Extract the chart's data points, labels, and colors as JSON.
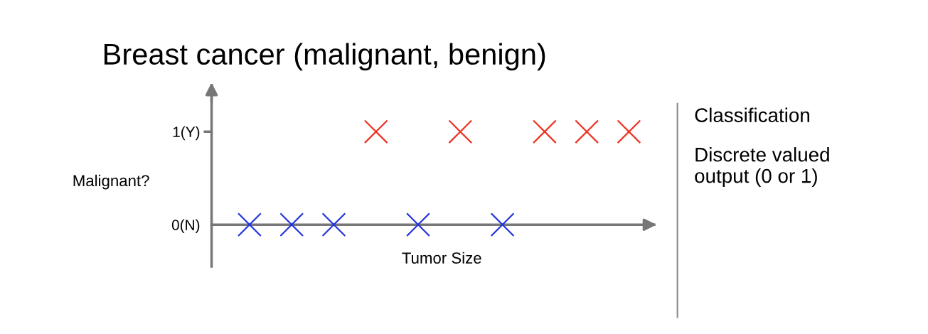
{
  "chart_data": {
    "type": "scatter",
    "title": "Breast cancer (malignant, benign)",
    "xlabel": "Tumor Size",
    "ylabel": "Malignant?",
    "categories": [
      null,
      null,
      null,
      null,
      null,
      null,
      null,
      null,
      null,
      null
    ],
    "series": [
      {
        "color": "#2233dd",
        "values": [
          0,
          0,
          0,
          null,
          0,
          null,
          0,
          null,
          null,
          null
        ]
      },
      {
        "color": "#ee3322",
        "values": [
          null,
          null,
          null,
          1,
          null,
          1,
          null,
          1,
          1,
          1
        ]
      }
    ],
    "ylim": [
      -0.45,
      1.5
    ],
    "yticks": [
      {
        "value": 0,
        "label": "0(N)"
      },
      {
        "value": 1,
        "label": "1(Y)"
      }
    ],
    "tick_labels": "y",
    "marker": "cross",
    "annotations": [
      "Classification",
      "Discrete valued\noutput (0 or 1)"
    ]
  }
}
